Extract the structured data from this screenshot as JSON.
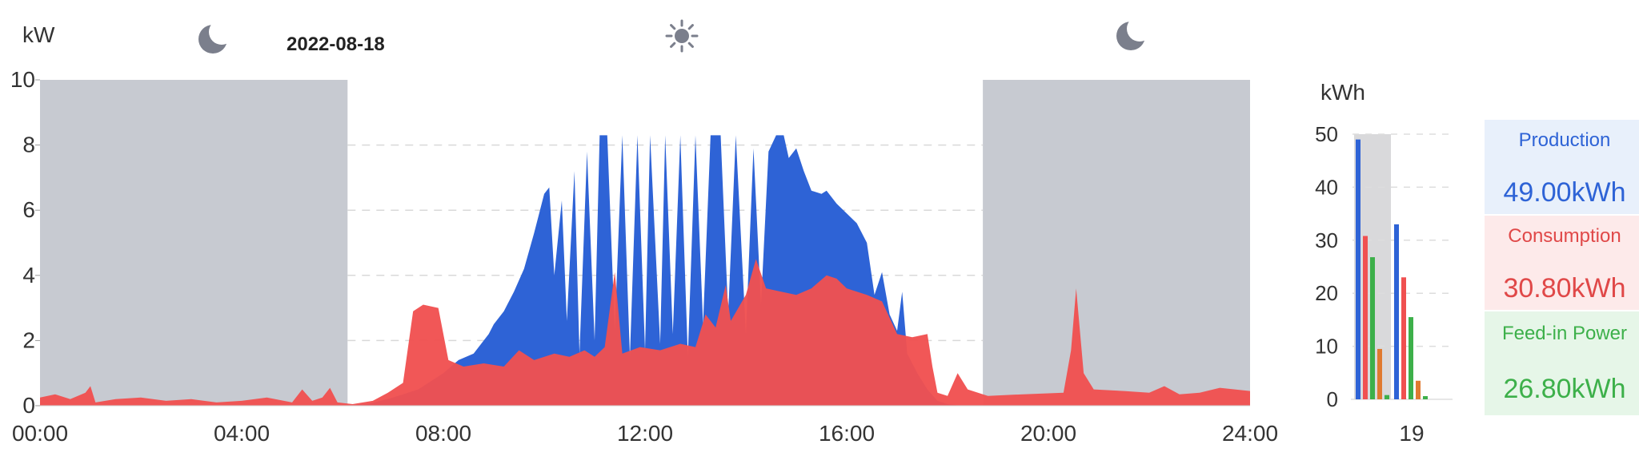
{
  "header": {
    "date": "2022-08-18",
    "icons": [
      "moon-icon",
      "sun-icon",
      "moon-icon"
    ]
  },
  "colors": {
    "production": "#2e63d6",
    "consumption": "#f05050",
    "feed_in": "#3db04a",
    "night_shade": "#c7cad1",
    "other": "#e07a30",
    "production_bg": "#e8f0fb",
    "consumption_bg": "#fdeaea",
    "feed_in_bg": "#e6f6e8"
  },
  "chart_data": [
    {
      "type": "area",
      "title": "",
      "ylabel": "kW",
      "xlabel": "",
      "x_unit": "hours",
      "xlim": [
        0,
        24
      ],
      "ylim": [
        0,
        10
      ],
      "x_tick_labels": [
        "00:00",
        "04:00",
        "08:00",
        "12:00",
        "16:00",
        "20:00",
        "24:00"
      ],
      "y_tick_labels": [
        "0",
        "2",
        "4",
        "6",
        "8",
        "10"
      ],
      "grid": "dashed horizontal",
      "night_periods": [
        [
          0,
          6.1
        ],
        [
          18.7,
          24
        ]
      ],
      "series": [
        {
          "name": "Production",
          "color": "#2e63d6",
          "points": [
            [
              0,
              0
            ],
            [
              6.0,
              0
            ],
            [
              6.5,
              0.05
            ],
            [
              7.0,
              0.25
            ],
            [
              7.5,
              0.5
            ],
            [
              8.0,
              1.0
            ],
            [
              8.3,
              1.4
            ],
            [
              8.6,
              1.6
            ],
            [
              8.9,
              2.2
            ],
            [
              9.0,
              2.5
            ],
            [
              9.2,
              2.9
            ],
            [
              9.4,
              3.5
            ],
            [
              9.6,
              4.2
            ],
            [
              9.8,
              5.3
            ],
            [
              10.0,
              6.5
            ],
            [
              10.1,
              6.7
            ],
            [
              10.2,
              4.0
            ],
            [
              10.35,
              6.3
            ],
            [
              10.45,
              2.6
            ],
            [
              10.6,
              7.2
            ],
            [
              10.7,
              1.6
            ],
            [
              10.85,
              7.8
            ],
            [
              11.0,
              2.0
            ],
            [
              11.1,
              8.3
            ],
            [
              11.25,
              8.3
            ],
            [
              11.4,
              2.3
            ],
            [
              11.55,
              8.3
            ],
            [
              11.7,
              1.5
            ],
            [
              11.85,
              8.3
            ],
            [
              12.0,
              1.7
            ],
            [
              12.1,
              8.3
            ],
            [
              12.3,
              1.9
            ],
            [
              12.4,
              8.3
            ],
            [
              12.55,
              2.2
            ],
            [
              12.7,
              8.3
            ],
            [
              12.85,
              1.5
            ],
            [
              13.0,
              8.3
            ],
            [
              13.15,
              2.5
            ],
            [
              13.3,
              8.3
            ],
            [
              13.5,
              8.3
            ],
            [
              13.65,
              2.8
            ],
            [
              13.8,
              8.3
            ],
            [
              14.0,
              2.2
            ],
            [
              14.15,
              7.9
            ],
            [
              14.3,
              3.1
            ],
            [
              14.45,
              7.8
            ],
            [
              14.6,
              8.3
            ],
            [
              14.75,
              8.3
            ],
            [
              14.85,
              7.6
            ],
            [
              15.0,
              7.9
            ],
            [
              15.15,
              7.2
            ],
            [
              15.3,
              6.6
            ],
            [
              15.5,
              6.5
            ],
            [
              15.6,
              6.6
            ],
            [
              15.8,
              6.2
            ],
            [
              16.0,
              5.9
            ],
            [
              16.2,
              5.6
            ],
            [
              16.4,
              5.0
            ],
            [
              16.55,
              3.4
            ],
            [
              16.7,
              4.1
            ],
            [
              16.85,
              2.8
            ],
            [
              17.0,
              2.3
            ],
            [
              17.1,
              3.5
            ],
            [
              17.2,
              1.6
            ],
            [
              17.4,
              1.0
            ],
            [
              17.6,
              0.5
            ],
            [
              17.8,
              0.15
            ],
            [
              18.0,
              0.05
            ],
            [
              18.3,
              0
            ],
            [
              24,
              0
            ]
          ]
        },
        {
          "name": "Consumption",
          "color": "#f05050",
          "points": [
            [
              0,
              0.25
            ],
            [
              0.3,
              0.35
            ],
            [
              0.6,
              0.2
            ],
            [
              0.9,
              0.4
            ],
            [
              1.0,
              0.6
            ],
            [
              1.1,
              0.1
            ],
            [
              1.5,
              0.2
            ],
            [
              2.0,
              0.25
            ],
            [
              2.5,
              0.15
            ],
            [
              3.0,
              0.2
            ],
            [
              3.5,
              0.1
            ],
            [
              4.0,
              0.15
            ],
            [
              4.5,
              0.25
            ],
            [
              5.0,
              0.1
            ],
            [
              5.2,
              0.5
            ],
            [
              5.4,
              0.15
            ],
            [
              5.6,
              0.25
            ],
            [
              5.75,
              0.55
            ],
            [
              5.9,
              0.1
            ],
            [
              6.2,
              0.05
            ],
            [
              6.6,
              0.15
            ],
            [
              6.9,
              0.4
            ],
            [
              7.2,
              0.7
            ],
            [
              7.4,
              2.9
            ],
            [
              7.6,
              3.1
            ],
            [
              7.9,
              3.0
            ],
            [
              8.0,
              2.2
            ],
            [
              8.1,
              1.4
            ],
            [
              8.4,
              1.2
            ],
            [
              8.8,
              1.3
            ],
            [
              9.2,
              1.2
            ],
            [
              9.5,
              1.7
            ],
            [
              9.8,
              1.4
            ],
            [
              10.2,
              1.6
            ],
            [
              10.5,
              1.5
            ],
            [
              10.8,
              1.7
            ],
            [
              11.0,
              1.5
            ],
            [
              11.2,
              1.8
            ],
            [
              11.4,
              4.1
            ],
            [
              11.55,
              1.6
            ],
            [
              11.9,
              1.8
            ],
            [
              12.3,
              1.7
            ],
            [
              12.7,
              1.9
            ],
            [
              13.0,
              1.8
            ],
            [
              13.2,
              2.8
            ],
            [
              13.4,
              2.4
            ],
            [
              13.6,
              3.7
            ],
            [
              13.7,
              2.6
            ],
            [
              14.0,
              3.4
            ],
            [
              14.2,
              4.5
            ],
            [
              14.4,
              3.6
            ],
            [
              14.7,
              3.5
            ],
            [
              15.0,
              3.4
            ],
            [
              15.3,
              3.6
            ],
            [
              15.6,
              4.0
            ],
            [
              15.8,
              3.9
            ],
            [
              16.0,
              3.6
            ],
            [
              16.4,
              3.4
            ],
            [
              16.7,
              3.2
            ],
            [
              17.0,
              2.2
            ],
            [
              17.3,
              2.1
            ],
            [
              17.6,
              2.2
            ],
            [
              17.7,
              1.2
            ],
            [
              17.8,
              0.4
            ],
            [
              18.0,
              0.3
            ],
            [
              18.2,
              1.0
            ],
            [
              18.4,
              0.5
            ],
            [
              18.8,
              0.3
            ],
            [
              19.5,
              0.35
            ],
            [
              20.3,
              0.4
            ],
            [
              20.45,
              1.7
            ],
            [
              20.55,
              3.6
            ],
            [
              20.7,
              1.0
            ],
            [
              20.9,
              0.5
            ],
            [
              21.5,
              0.45
            ],
            [
              22.0,
              0.4
            ],
            [
              22.3,
              0.6
            ],
            [
              22.6,
              0.35
            ],
            [
              23.0,
              0.4
            ],
            [
              23.4,
              0.55
            ],
            [
              24,
              0.45
            ]
          ]
        }
      ]
    },
    {
      "type": "bar",
      "title": "",
      "ylabel": "kWh",
      "ylim": [
        0,
        50
      ],
      "y_tick_labels": [
        "0",
        "10",
        "20",
        "30",
        "40",
        "50"
      ],
      "categories": [
        "",
        "19"
      ],
      "highlighted_category": 0,
      "series": [
        {
          "color": "#2e63d6",
          "values": [
            49.0,
            33.0
          ]
        },
        {
          "color": "#f05050",
          "values": [
            30.8,
            23.0
          ]
        },
        {
          "color": "#3db04a",
          "values": [
            26.8,
            15.5
          ]
        },
        {
          "color": "#e07a30",
          "values": [
            9.5,
            3.5
          ]
        },
        {
          "color": "#3db04a",
          "values": [
            0.8,
            0.6
          ]
        }
      ]
    }
  ],
  "summary": {
    "production": {
      "label": "Production",
      "value": "49.00kWh"
    },
    "consumption": {
      "label": "Consumption",
      "value": "30.80kWh"
    },
    "feed_in": {
      "label": "Feed-in Power",
      "value": "26.80kWh"
    }
  }
}
